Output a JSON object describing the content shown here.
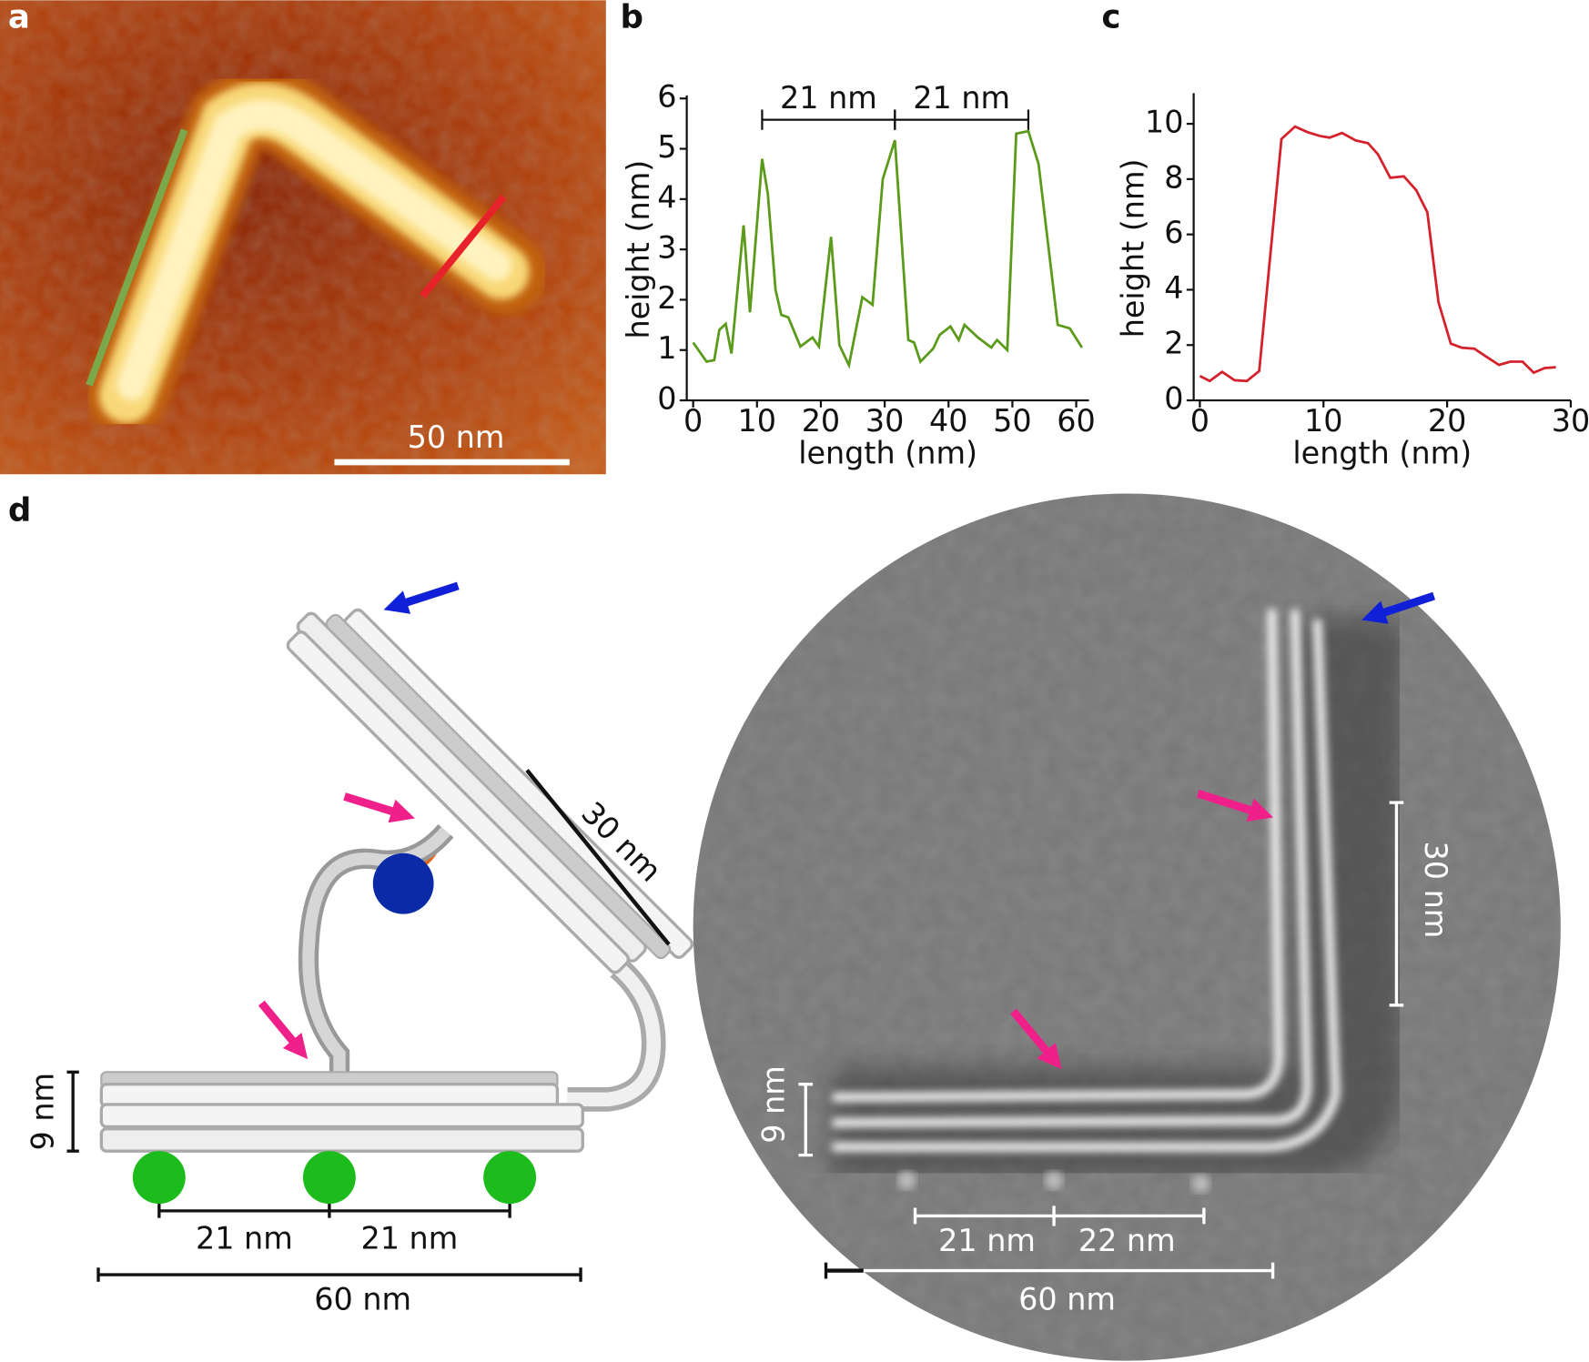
{
  "panel_a": {
    "label": "a",
    "scale_bar": "50 nm"
  },
  "chart_data": [
    {
      "type": "line",
      "title": "b",
      "xlabel": "length (nm)",
      "ylabel": "height (nm)",
      "color": "#5b9a1a",
      "x": [
        0,
        2.1,
        3.3,
        4.1,
        5.1,
        6,
        7.9,
        8.9,
        10.8,
        11.7,
        12.9,
        13.8,
        14.9,
        16.8,
        18.7,
        19.7,
        21.6,
        22.9,
        24.4,
        26.5,
        28.1,
        29.7,
        31.6,
        33.7,
        34.6,
        35.6,
        37.6,
        38.6,
        40.3,
        41.6,
        42.5,
        44.6,
        46.7,
        47.6,
        49.2,
        50.6,
        52.5,
        54.1,
        57.1,
        59.0,
        60.9
      ],
      "values": [
        1.15,
        0.77,
        0.8,
        1.4,
        1.52,
        0.93,
        3.48,
        1.75,
        4.8,
        4.1,
        2.2,
        1.7,
        1.65,
        1.07,
        1.25,
        1.07,
        3.25,
        1.1,
        0.7,
        2.05,
        1.9,
        4.4,
        5.17,
        1.2,
        1.15,
        0.77,
        1.03,
        1.3,
        1.47,
        1.2,
        1.5,
        1.25,
        1.05,
        1.2,
        1.0,
        5.3,
        5.35,
        4.7,
        1.5,
        1.43,
        1.05
      ],
      "xlim": [
        -1,
        62
      ],
      "xticks": [
        0,
        10,
        20,
        30,
        40,
        50,
        60
      ],
      "ylim": [
        0,
        6
      ],
      "yticks": [
        0,
        1,
        2,
        3,
        4,
        5,
        6
      ],
      "annotations": [
        {
          "x": [
            10.8,
            31.6
          ],
          "label": "21 nm"
        },
        {
          "x": [
            31.6,
            52.5
          ],
          "label": "21 nm"
        }
      ]
    },
    {
      "type": "line",
      "title": "c",
      "xlabel": "length (nm)",
      "ylabel": "height (nm)",
      "color": "#d4212c",
      "x": [
        0,
        0.8,
        1.8,
        2.8,
        3.8,
        4.8,
        6.6,
        7.7,
        8.7,
        9.7,
        10.5,
        11.5,
        12.6,
        13.6,
        14.4,
        15.4,
        16.5,
        17.5,
        18.4,
        19.3,
        20.3,
        21.2,
        22.2,
        23.1,
        24.2,
        25.1,
        26.1,
        27,
        27.9,
        28.8
      ],
      "values": [
        0.88,
        0.7,
        1.03,
        0.73,
        0.7,
        1.06,
        9.45,
        9.9,
        9.7,
        9.56,
        9.5,
        9.67,
        9.4,
        9.3,
        8.9,
        8.05,
        8.1,
        7.6,
        6.8,
        3.55,
        2.05,
        1.9,
        1.87,
        1.6,
        1.28,
        1.4,
        1.4,
        1.0,
        1.17,
        1.2
      ],
      "xlim": [
        -0.5,
        30
      ],
      "xticks": [
        0,
        10,
        20,
        30
      ],
      "ylim": [
        0,
        11
      ],
      "yticks": [
        0,
        2,
        4,
        6,
        8,
        10
      ]
    }
  ],
  "panel_d": {
    "label": "d",
    "schematic": {
      "arm": "30 nm",
      "height": "9 nm",
      "spacings": [
        "21 nm",
        "21 nm"
      ],
      "length": "60 nm"
    },
    "micrograph": {
      "arm": "30 nm",
      "height": "9 nm",
      "spacings": [
        "21 nm",
        "22 nm"
      ],
      "length": "60 nm"
    }
  }
}
